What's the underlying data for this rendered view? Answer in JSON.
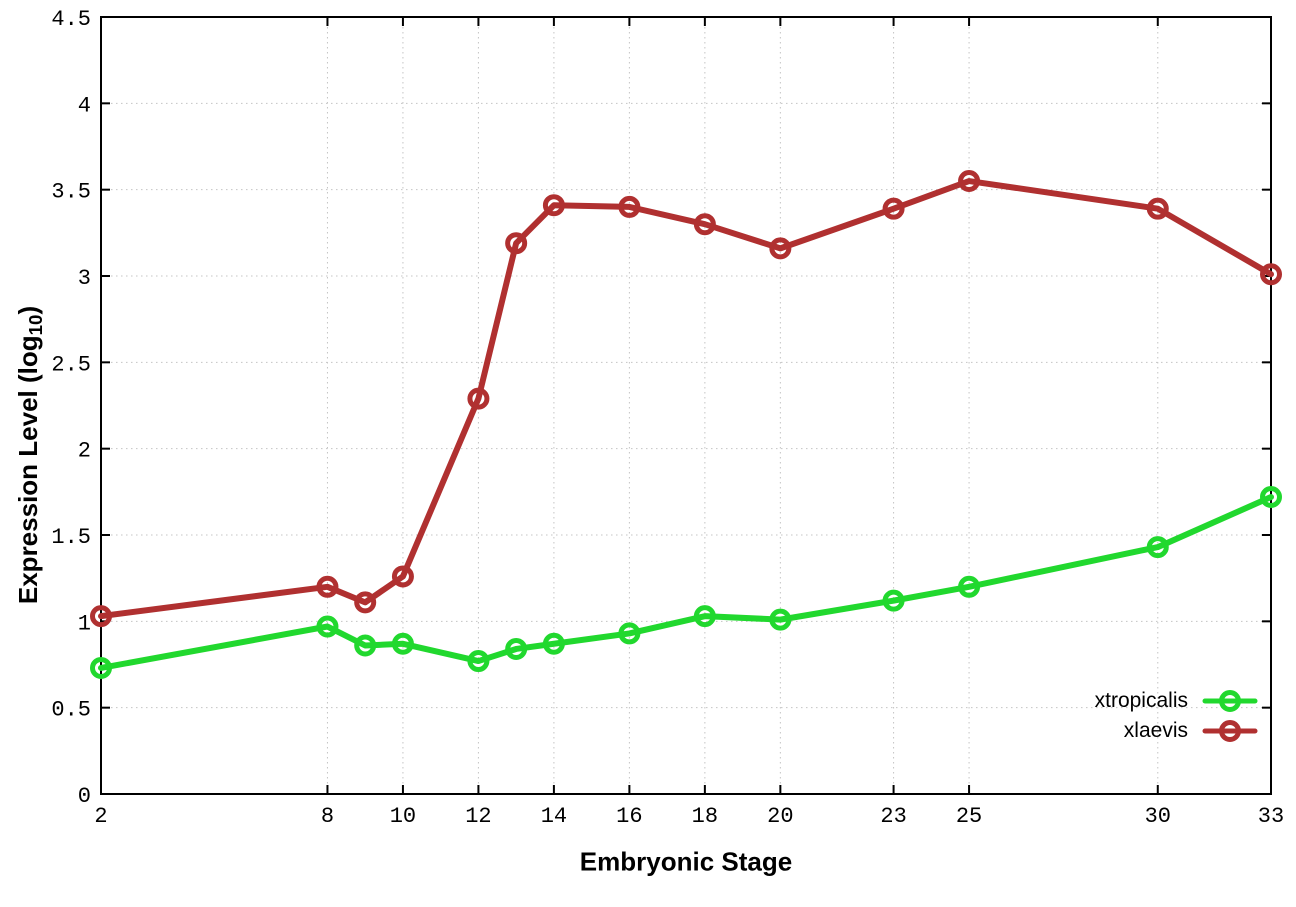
{
  "figure": {
    "xlabel": "Embryonic Stage",
    "ylabel_main": "Expression Level (log",
    "ylabel_sub": "10",
    "ylabel_close": ")"
  },
  "chart_data": {
    "type": "line",
    "title": "",
    "xlabel": "Embryonic Stage",
    "ylabel": "Expression Level (log10)",
    "xlim": [
      2,
      33
    ],
    "ylim": [
      0,
      4.5
    ],
    "grid": true,
    "grid_style": "dotted",
    "legend_position": "bottom-right",
    "x_tick_values": [
      2,
      8,
      10,
      12,
      14,
      16,
      18,
      20,
      23,
      25,
      30,
      33
    ],
    "x_tick_labels": [
      "2",
      "8",
      "10",
      "12",
      "14",
      "16",
      "18",
      "20",
      "23",
      "25",
      "30",
      "33"
    ],
    "y_tick_values": [
      0,
      0.5,
      1,
      1.5,
      2,
      2.5,
      3,
      3.5,
      4,
      4.5
    ],
    "y_tick_labels": [
      "0",
      "0.5",
      "1",
      "1.5",
      "2",
      "2.5",
      "3",
      "3.5",
      "4",
      "4.5"
    ],
    "x": [
      2,
      8,
      9,
      10,
      12,
      13,
      14,
      16,
      18,
      20,
      23,
      25,
      30,
      33
    ],
    "series": [
      {
        "name": "xtropicalis",
        "color": "#21d82e",
        "values": [
          0.73,
          0.97,
          0.86,
          0.87,
          0.77,
          0.84,
          0.87,
          0.93,
          1.03,
          1.01,
          1.12,
          1.2,
          1.43,
          1.72
        ]
      },
      {
        "name": "xlaevis",
        "color": "#b03030",
        "values": [
          1.03,
          1.2,
          1.11,
          1.26,
          2.29,
          3.19,
          3.41,
          3.4,
          3.3,
          3.16,
          3.39,
          3.55,
          3.39,
          3.01
        ]
      }
    ],
    "colors": {
      "border": "#000000",
      "grid": "#c4c4c4",
      "background": "#ffffff"
    }
  }
}
